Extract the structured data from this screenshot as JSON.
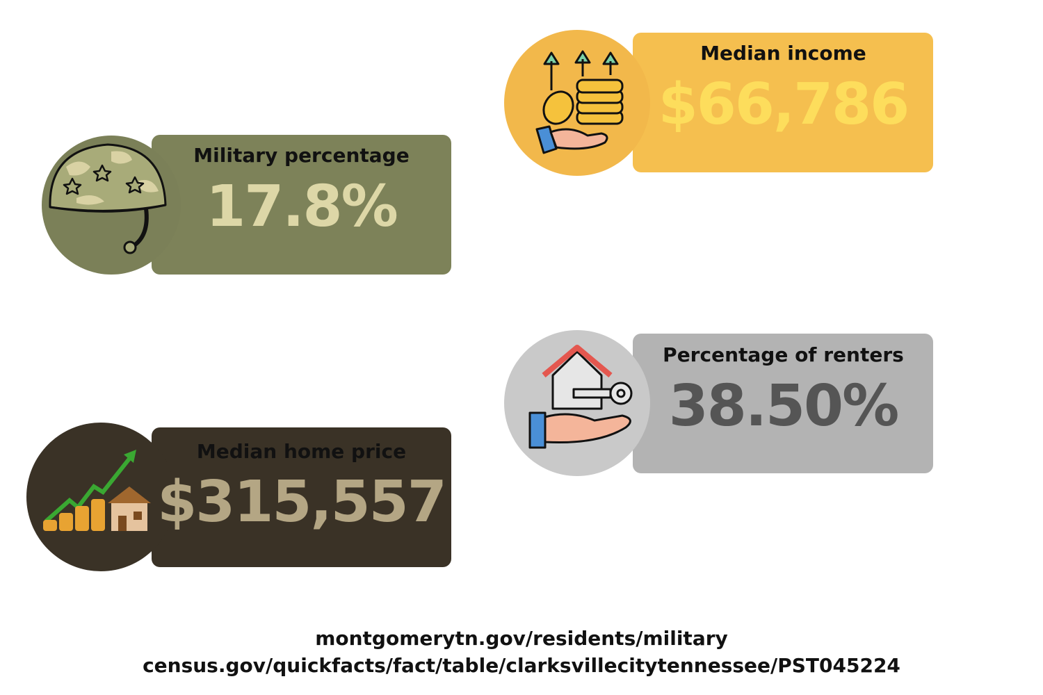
{
  "cards": [
    {
      "label": "Median income",
      "value": "$66,786"
    },
    {
      "label": "Military percentage",
      "value": "17.8%"
    },
    {
      "label": "Percentage of renters",
      "value": "38.50%"
    },
    {
      "label": "Median home price",
      "value": "$315,557"
    }
  ],
  "sources": [
    "montgomerytn.gov/residents/military",
    "census.gov/quickfacts/fact/table/clarksvillecitytennessee/PST045224"
  ]
}
